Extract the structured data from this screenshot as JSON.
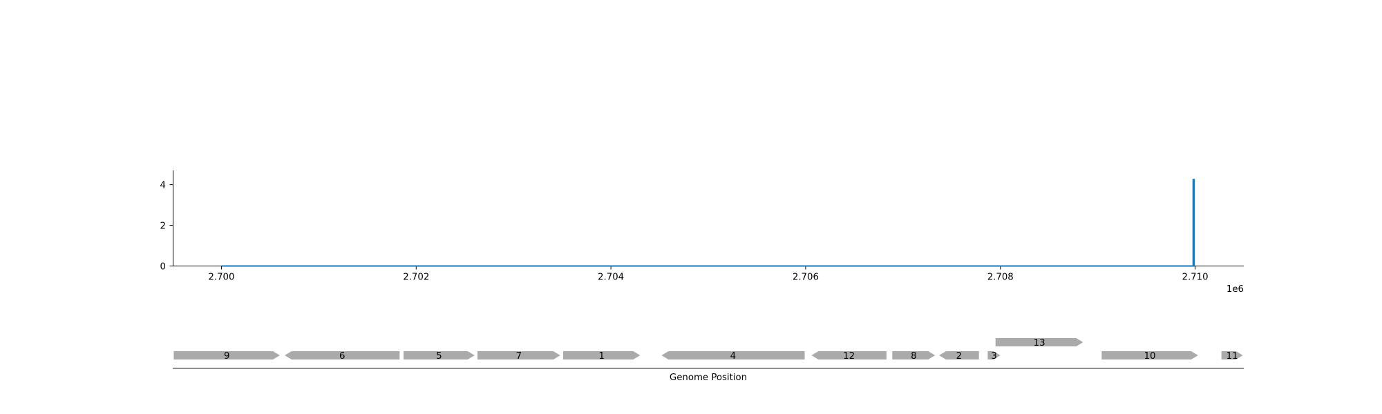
{
  "chart_data": [
    {
      "type": "line",
      "title": "",
      "xlabel": "",
      "ylabel": "",
      "x_offset_label": "1e6",
      "xlim": [
        2699500,
        2710500
      ],
      "ylim": [
        0,
        4.7
      ],
      "x_ticks": [
        2700000,
        2702000,
        2704000,
        2706000,
        2708000,
        2710000
      ],
      "x_tick_labels": [
        "2.700",
        "2.702",
        "2.704",
        "2.706",
        "2.708",
        "2.710"
      ],
      "y_ticks": [
        0,
        2,
        4
      ],
      "y_tick_labels": [
        "0",
        "2",
        "4"
      ],
      "grid": false,
      "line_color": "#1f77b4",
      "series": [
        {
          "x": [
            2700000,
            2709980,
            2709980,
            2709990,
            2709990,
            2709995
          ],
          "y": [
            0,
            0,
            4.25,
            4.25,
            0,
            0
          ]
        }
      ]
    },
    {
      "type": "gene-map",
      "xlabel": "Genome Position",
      "xlim": [
        2699500,
        2710500
      ],
      "gene_color": "#aaaaaa",
      "genes": [
        {
          "label": "9",
          "start": 2699510,
          "end": 2700600,
          "strand": "+",
          "row": 0
        },
        {
          "label": "6",
          "start": 2700650,
          "end": 2701830,
          "strand": "-",
          "row": 0
        },
        {
          "label": "5",
          "start": 2701870,
          "end": 2702600,
          "strand": "+",
          "row": 0
        },
        {
          "label": "7",
          "start": 2702630,
          "end": 2703480,
          "strand": "+",
          "row": 0
        },
        {
          "label": "1",
          "start": 2703510,
          "end": 2704300,
          "strand": "+",
          "row": 0
        },
        {
          "label": "4",
          "start": 2704520,
          "end": 2705990,
          "strand": "-",
          "row": 0
        },
        {
          "label": "12",
          "start": 2706060,
          "end": 2706830,
          "strand": "-",
          "row": 0
        },
        {
          "label": "8",
          "start": 2706890,
          "end": 2707330,
          "strand": "+",
          "row": 0
        },
        {
          "label": "2",
          "start": 2707370,
          "end": 2707780,
          "strand": "-",
          "row": 0
        },
        {
          "label": "3",
          "start": 2707870,
          "end": 2708000,
          "strand": "+",
          "row": 0
        },
        {
          "label": "13",
          "start": 2707950,
          "end": 2708850,
          "strand": "+",
          "row": 1
        },
        {
          "label": "10",
          "start": 2709040,
          "end": 2710030,
          "strand": "+",
          "row": 0
        },
        {
          "label": "11",
          "start": 2710270,
          "end": 2710490,
          "strand": "+",
          "row": 0
        }
      ]
    }
  ]
}
